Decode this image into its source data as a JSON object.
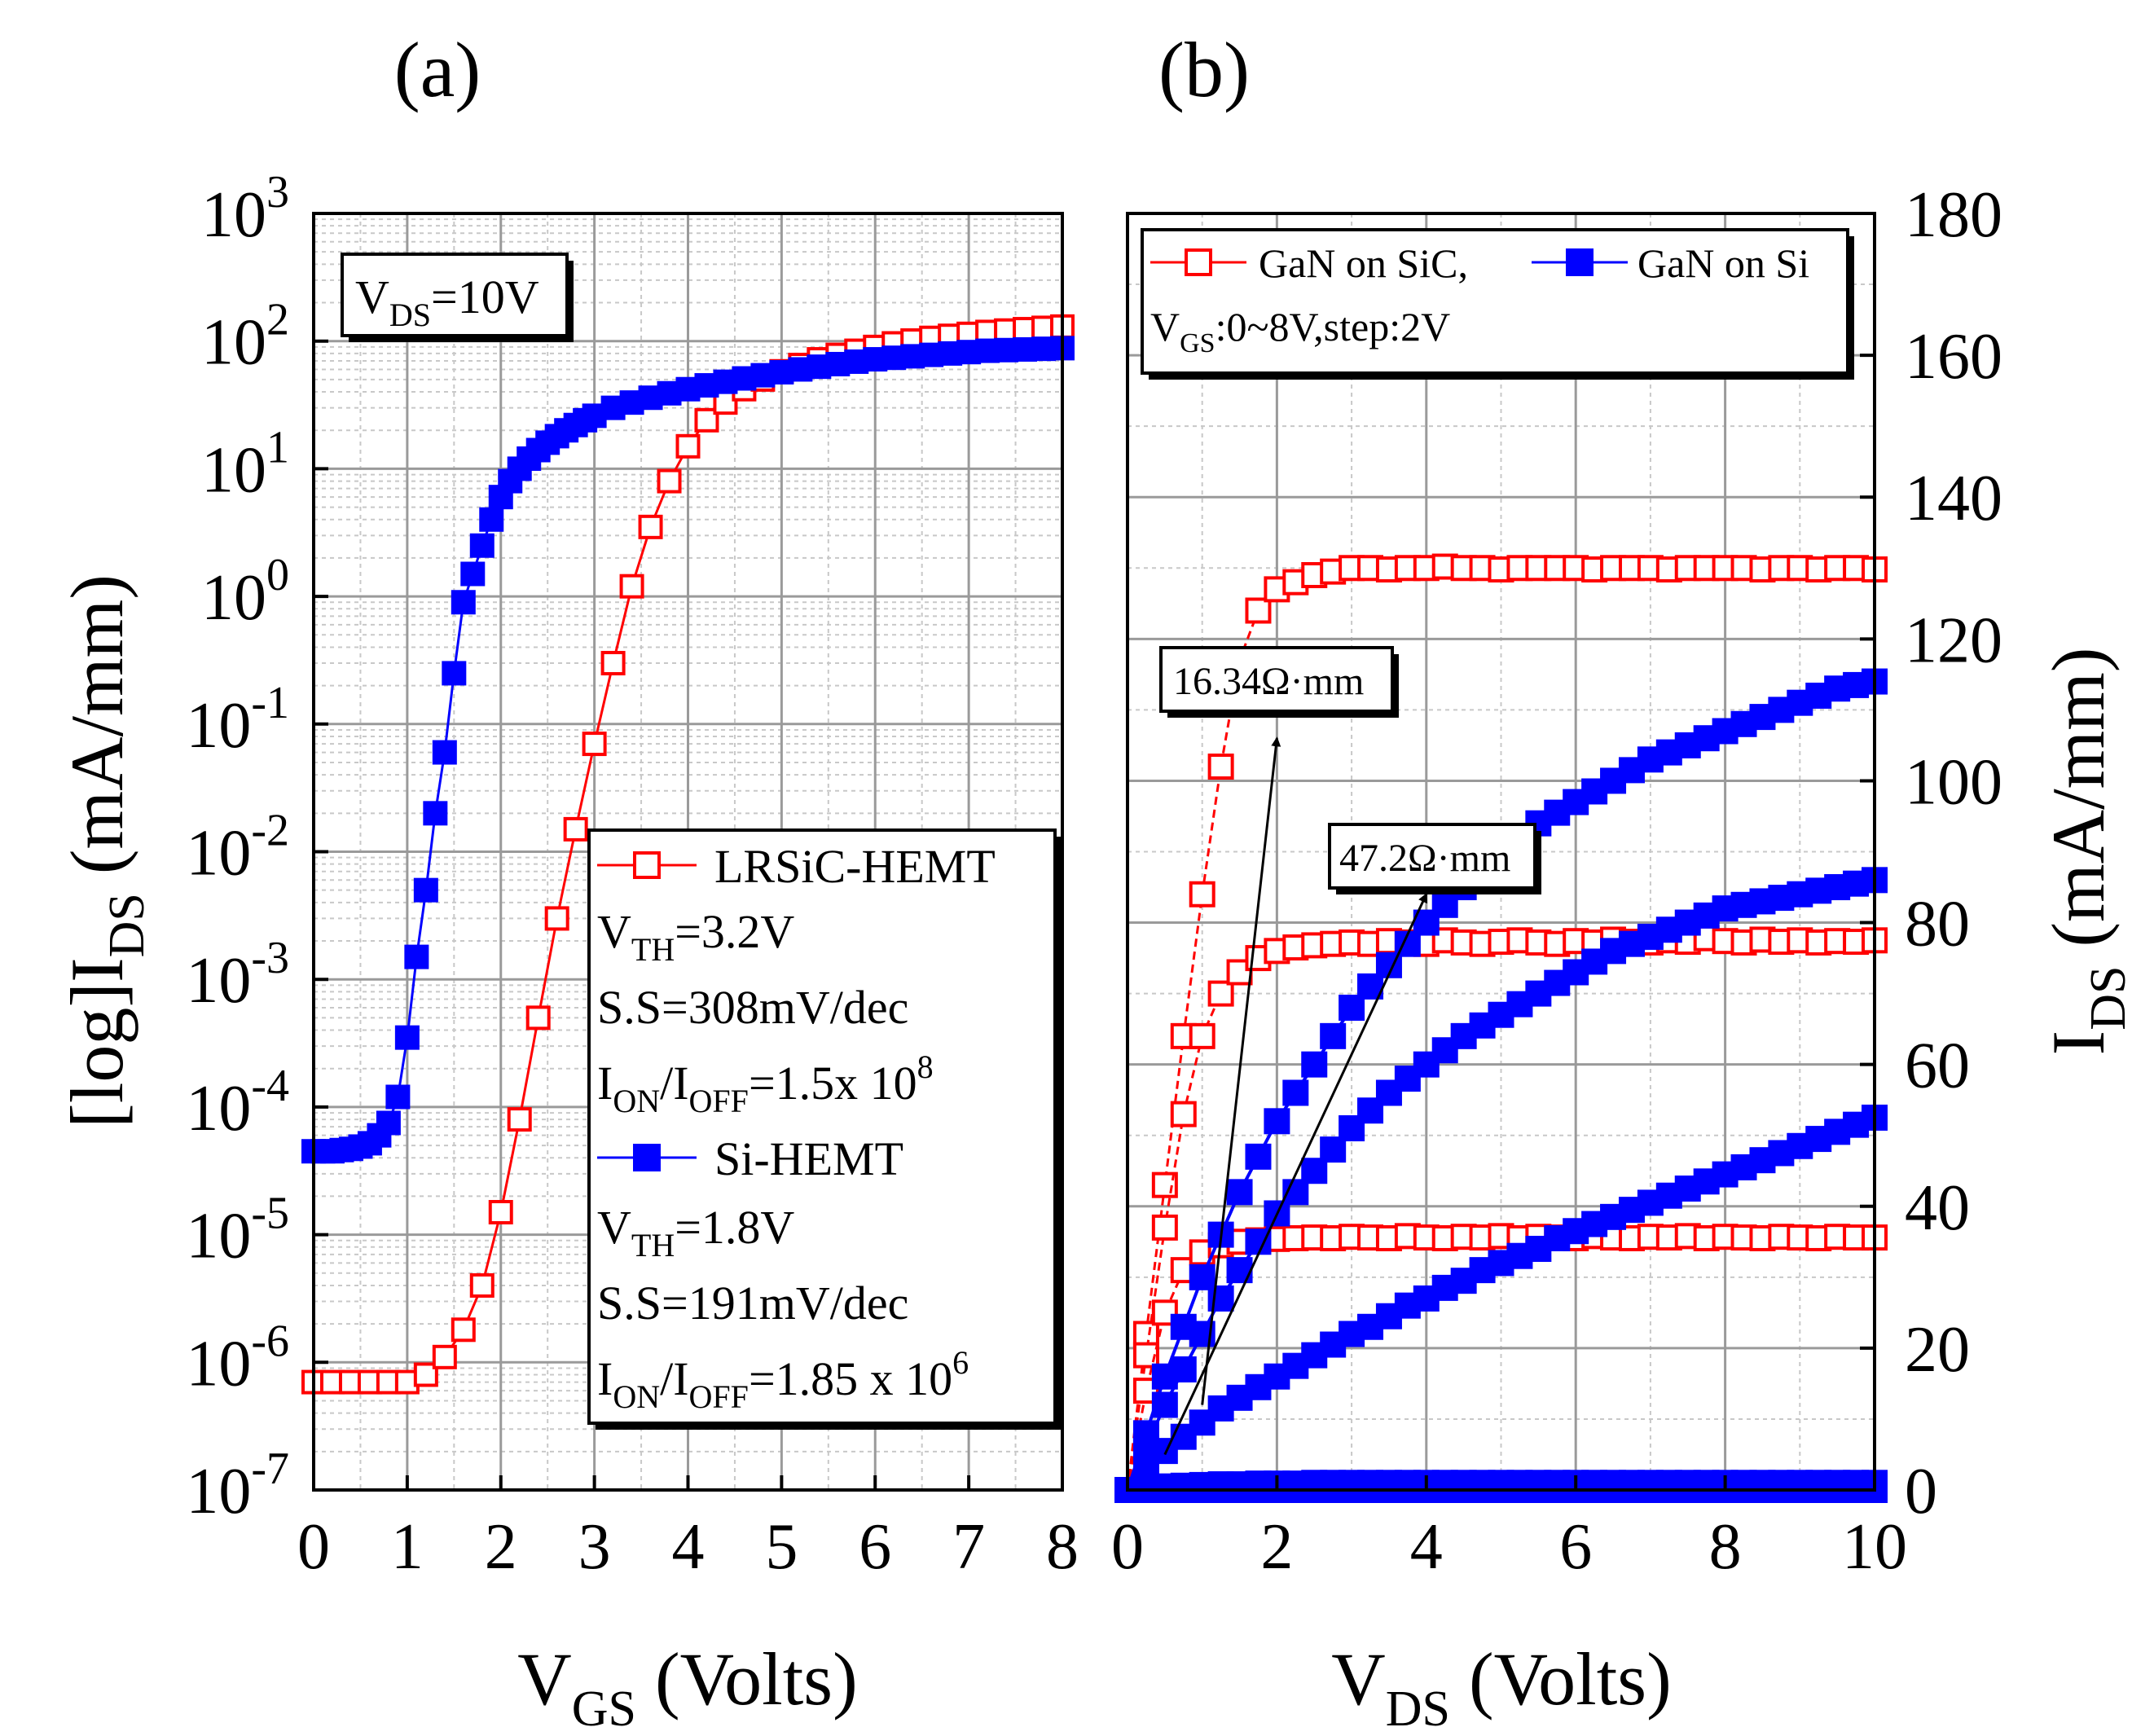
{
  "chart_data": [
    {
      "panel_label": "(a)",
      "type": "scatter",
      "x_scale": "linear",
      "y_scale": "log",
      "xlim": [
        0,
        8
      ],
      "ylim": [
        1e-07,
        1000
      ],
      "x_ticks": [
        0,
        1,
        2,
        3,
        4,
        5,
        6,
        7,
        8
      ],
      "y_ticks": [
        {
          "base": "10",
          "exp": "-7"
        },
        {
          "base": "10",
          "exp": "-6"
        },
        {
          "base": "10",
          "exp": "-5"
        },
        {
          "base": "10",
          "exp": "-4"
        },
        {
          "base": "10",
          "exp": "-3"
        },
        {
          "base": "10",
          "exp": "-2"
        },
        {
          "base": "10",
          "exp": "-1"
        },
        {
          "base": "10",
          "exp": "0"
        },
        {
          "base": "10",
          "exp": "1"
        },
        {
          "base": "10",
          "exp": "2"
        },
        {
          "base": "10",
          "exp": "3"
        }
      ],
      "xlabel": {
        "main": "V",
        "sub": "GS",
        "rest": " (Volts)"
      },
      "ylabel": {
        "main": "[log]I",
        "sub": "DS",
        "rest": " (mA/mm)"
      },
      "grid": true,
      "condition_box": {
        "main": "V",
        "sub": "DS",
        "rest": "=10V"
      },
      "legend": {
        "placement": "lower-right",
        "entries": [
          {
            "series": "LRSiC-HEMT",
            "label": "LRSiC-HEMT",
            "lines": [
              {
                "main": "V",
                "sub": "TH",
                "rest": "=3.2V"
              },
              {
                "text": "S.S=308mV/dec"
              },
              {
                "a": "I",
                "asub": "ON",
                "b": "/I",
                "bsub": "OFF",
                "c": "=1.5x 10",
                "sup": "8"
              }
            ]
          },
          {
            "series": "Si-HEMT",
            "label": "Si-HEMT",
            "lines": [
              {
                "main": "V",
                "sub": "TH",
                "rest": "=1.8V"
              },
              {
                "text": "S.S=191mV/dec"
              },
              {
                "a": "I",
                "asub": "ON",
                "b": "/I",
                "bsub": "OFF",
                "c": "=1.85 x 10",
                "sup": "6"
              }
            ]
          }
        ]
      },
      "series": [
        {
          "name": "LRSiC-HEMT",
          "marker": "open-square",
          "color": "#ff0000",
          "x": [
            0.0,
            0.2,
            0.4,
            0.6,
            0.8,
            1.0,
            1.2,
            1.4,
            1.6,
            1.8,
            2.0,
            2.2,
            2.4,
            2.6,
            2.8,
            3.0,
            3.2,
            3.4,
            3.6,
            3.8,
            4.0,
            4.2,
            4.4,
            4.6,
            4.8,
            5.0,
            5.2,
            5.4,
            5.6,
            5.8,
            6.0,
            6.2,
            6.4,
            6.6,
            6.8,
            7.0,
            7.2,
            7.4,
            7.6,
            7.8,
            8.0
          ],
          "y": [
            7e-07,
            7e-07,
            7e-07,
            7e-07,
            7e-07,
            7e-07,
            8e-07,
            1.1e-06,
            1.8e-06,
            4e-06,
            1.5e-05,
            8e-05,
            0.0005,
            0.003,
            0.015,
            0.07,
            0.3,
            1.2,
            3.5,
            8,
            15,
            24,
            33,
            42,
            50,
            58,
            65,
            72,
            78,
            84,
            90,
            96,
            101,
            106,
            110,
            114,
            118,
            121,
            124,
            127,
            130
          ]
        },
        {
          "name": "Si-HEMT",
          "marker": "filled-square",
          "color": "#0000ff",
          "x": [
            0.0,
            0.1,
            0.2,
            0.3,
            0.4,
            0.5,
            0.6,
            0.7,
            0.8,
            0.9,
            1.0,
            1.1,
            1.2,
            1.3,
            1.4,
            1.5,
            1.6,
            1.7,
            1.8,
            1.9,
            2.0,
            2.1,
            2.2,
            2.3,
            2.4,
            2.5,
            2.6,
            2.7,
            2.8,
            2.9,
            3.0,
            3.2,
            3.4,
            3.6,
            3.8,
            4.0,
            4.2,
            4.4,
            4.6,
            4.8,
            5.0,
            5.2,
            5.4,
            5.6,
            5.8,
            6.0,
            6.2,
            6.4,
            6.6,
            6.8,
            7.0,
            7.2,
            7.4,
            7.6,
            7.8,
            8.0
          ],
          "y": [
            4.5e-05,
            4.5e-05,
            4.5e-05,
            4.6e-05,
            4.7e-05,
            4.9e-05,
            5.2e-05,
            6e-05,
            7.5e-05,
            0.00012,
            0.00035,
            0.0015,
            0.005,
            0.02,
            0.06,
            0.25,
            0.9,
            1.5,
            2.5,
            4,
            6,
            8,
            10,
            12,
            14,
            16,
            18,
            20,
            22,
            24,
            26,
            30,
            33,
            36,
            39,
            42,
            45,
            48,
            51,
            54,
            57,
            60,
            63,
            66,
            69,
            72,
            74,
            76,
            78,
            80,
            82,
            84,
            85,
            86,
            87,
            88
          ]
        }
      ]
    },
    {
      "panel_label": "(b)",
      "type": "scatter",
      "x_scale": "linear",
      "y_scale": "linear",
      "y_axis_side": "right",
      "xlim": [
        0,
        10
      ],
      "ylim": [
        0,
        180
      ],
      "x_ticks": [
        0,
        2,
        4,
        6,
        8,
        10
      ],
      "y_ticks": [
        0,
        20,
        40,
        60,
        80,
        100,
        120,
        140,
        160,
        180
      ],
      "xlabel": {
        "main": "V",
        "sub": "DS",
        "rest": " (Volts)"
      },
      "ylabel": {
        "main": "I",
        "sub": "DS",
        "rest": " (mA/mm)"
      },
      "grid": true,
      "legend": {
        "placement": "top",
        "entries": [
          {
            "series": "GaN on SiC",
            "label": "GaN on SiC,"
          },
          {
            "series": "GaN on Si",
            "label": "GaN on Si"
          }
        ],
        "condition": {
          "main": "V",
          "sub": "GS",
          "rest": ":0~8V,step:2V"
        }
      },
      "annotations": [
        {
          "text": "16.34Ω·mm",
          "arrow_from": [
            1.0,
            12
          ],
          "arrow_to": [
            2.0,
            106
          ]
        },
        {
          "text": "47.2Ω·mm",
          "arrow_from": [
            0.5,
            5
          ],
          "arrow_to": [
            4.0,
            84
          ]
        }
      ],
      "x_values": [
        0.0,
        0.25,
        0.5,
        0.75,
        1.0,
        1.25,
        1.5,
        1.75,
        2.0,
        2.25,
        2.5,
        2.75,
        3.0,
        3.25,
        3.5,
        3.75,
        4.0,
        4.25,
        4.5,
        4.75,
        5.0,
        5.25,
        5.5,
        5.75,
        6.0,
        6.25,
        6.5,
        6.75,
        7.0,
        7.25,
        7.5,
        7.75,
        8.0,
        8.25,
        8.5,
        8.75,
        9.0,
        9.25,
        9.5,
        9.75,
        10.0
      ],
      "series": [
        {
          "name": "GaN on SiC",
          "marker": "open-square",
          "color": "#ff0000",
          "curves": [
            {
              "vgs": "8V",
              "y": [
                0,
                22,
                43,
                64,
                84,
                102,
                117,
                124,
                127,
                128,
                129,
                129.5,
                130,
                130,
                129.8,
                130,
                130,
                130.2,
                130,
                130,
                129.8,
                130,
                130,
                130,
                130,
                129.8,
                130,
                130,
                130,
                129.8,
                130,
                130,
                130,
                130,
                129.8,
                130,
                130,
                129.8,
                130,
                130,
                129.8
              ]
            },
            {
              "vgs": "6V",
              "y": [
                0,
                19,
                37,
                53,
                64,
                70,
                73,
                75,
                76,
                76.5,
                76.8,
                77,
                77.2,
                77,
                77.4,
                77.2,
                77,
                77.5,
                77.2,
                77,
                77.3,
                77.5,
                77.2,
                77,
                77.4,
                77.2,
                77.6,
                77.3,
                77.2,
                77.5,
                77.3,
                77.8,
                77.4,
                77.2,
                77.6,
                77.3,
                77.5,
                77.2,
                77.4,
                77.3,
                77.5
              ]
            },
            {
              "vgs": "4V",
              "y": [
                0,
                14,
                25,
                31,
                33.5,
                34.5,
                35,
                35.2,
                35.4,
                35.5,
                35.6,
                35.5,
                35.7,
                35.6,
                35.5,
                35.8,
                35.6,
                35.5,
                35.7,
                35.6,
                35.8,
                35.5,
                35.7,
                35.6,
                35.5,
                35.8,
                35.6,
                35.5,
                35.7,
                35.6,
                35.8,
                35.5,
                35.7,
                35.6,
                35.5,
                35.7,
                35.6,
                35.5,
                35.7,
                35.6,
                35.6
              ]
            }
          ]
        },
        {
          "name": "GaN on Si",
          "marker": "filled-square",
          "color": "#0000ff",
          "curves": [
            {
              "vgs": "8V",
              "y": [
                0,
                8,
                16,
                23,
                30,
                36,
                42,
                47,
                52,
                56,
                60,
                64,
                68,
                71,
                74,
                77,
                80,
                82.5,
                85,
                87.5,
                90,
                92,
                94,
                95.5,
                97,
                98.5,
                100,
                101.5,
                103,
                104,
                105,
                106,
                107,
                108,
                109,
                110,
                111,
                112,
                113,
                113.5,
                114
              ]
            },
            {
              "vgs": "6V",
              "y": [
                0,
                6,
                12,
                17,
                22,
                27,
                31,
                35,
                39,
                42,
                45,
                48,
                51,
                53.5,
                56,
                58,
                60,
                62,
                64,
                65.5,
                67,
                68.5,
                70,
                71.5,
                73,
                74.5,
                76,
                77,
                78,
                79,
                80,
                81,
                82,
                82.5,
                83,
                83.5,
                84,
                84.5,
                85,
                85.5,
                86
              ]
            },
            {
              "vgs": "4V",
              "y": [
                0,
                3,
                5.5,
                7.5,
                9.5,
                11.5,
                13,
                14.5,
                16,
                17.5,
                19,
                20.5,
                22,
                23,
                24.5,
                26,
                27,
                28.5,
                29.5,
                31,
                32,
                33,
                34,
                35.5,
                36.5,
                37.5,
                38.5,
                39.5,
                40.5,
                41.5,
                42.5,
                43.5,
                44.5,
                45.5,
                46.5,
                47.5,
                48.5,
                49.5,
                50.5,
                51.5,
                52.5
              ]
            },
            {
              "vgs": "2V",
              "y": [
                0,
                0.3,
                0.5,
                0.6,
                0.7,
                0.8,
                0.8,
                0.9,
                0.9,
                0.9,
                1,
                1,
                1,
                1,
                1,
                1,
                1,
                1,
                1,
                1,
                1,
                1,
                1,
                1,
                1,
                1,
                1,
                1,
                1,
                1,
                1,
                1,
                1,
                1,
                1,
                1,
                1,
                1,
                1,
                1,
                1
              ]
            },
            {
              "vgs": "0V",
              "y": [
                0,
                0,
                0,
                0,
                0,
                0,
                0,
                0,
                0,
                0,
                0,
                0,
                0,
                0,
                0,
                0,
                0,
                0,
                0,
                0,
                0,
                0,
                0,
                0,
                0,
                0,
                0,
                0,
                0,
                0,
                0,
                0,
                0,
                0,
                0,
                0,
                0,
                0,
                0,
                0,
                0
              ]
            }
          ]
        }
      ]
    }
  ]
}
